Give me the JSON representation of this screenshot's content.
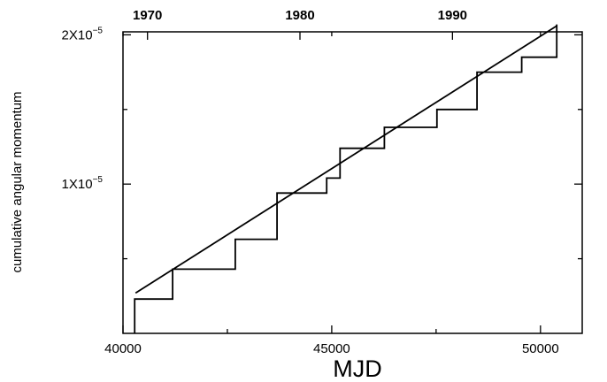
{
  "chart_data": {
    "type": "line",
    "title": "",
    "xlabel": "MJD",
    "ylabel": "cumulative angular momentum",
    "xlim": [
      40000,
      51000
    ],
    "ylim": [
      0,
      2.02e-05
    ],
    "grid": false,
    "x_ticks": [
      {
        "value": 40000,
        "label": "40000"
      },
      {
        "value": 45000,
        "label": "45000"
      },
      {
        "value": 50000,
        "label": "50000"
      }
    ],
    "y_ticks": [
      {
        "value": 1e-05,
        "label_base": "1X10",
        "label_exp": "−5"
      },
      {
        "value": 2e-05,
        "label_base": "2X10",
        "label_exp": "−5"
      }
    ],
    "top_axis": {
      "label": "",
      "ticks": [
        {
          "value": 40587,
          "label": "1970"
        },
        {
          "value": 44239,
          "label": "1980"
        },
        {
          "value": 47892,
          "label": "1990"
        }
      ]
    },
    "series": [
      {
        "style": "step",
        "x": [
          40280,
          40280,
          41190,
          41190,
          42690,
          42690,
          43690,
          43690,
          44880,
          44880,
          45200,
          45200,
          46260,
          46260,
          47520,
          47520,
          48480,
          48480,
          49550,
          49550,
          50390,
          50390
        ],
        "y": [
          0,
          2.3e-06,
          2.3e-06,
          4.3e-06,
          4.3e-06,
          6.3e-06,
          6.3e-06,
          9.4e-06,
          9.4e-06,
          1.04e-05,
          1.04e-05,
          1.24e-05,
          1.24e-05,
          1.38e-05,
          1.38e-05,
          1.5e-05,
          1.5e-05,
          1.75e-05,
          1.75e-05,
          1.85e-05,
          1.85e-05,
          2.07e-05
        ]
      },
      {
        "style": "line",
        "x": [
          40300,
          50390
        ],
        "y": [
          2.7e-06,
          2.06e-05
        ]
      }
    ]
  }
}
